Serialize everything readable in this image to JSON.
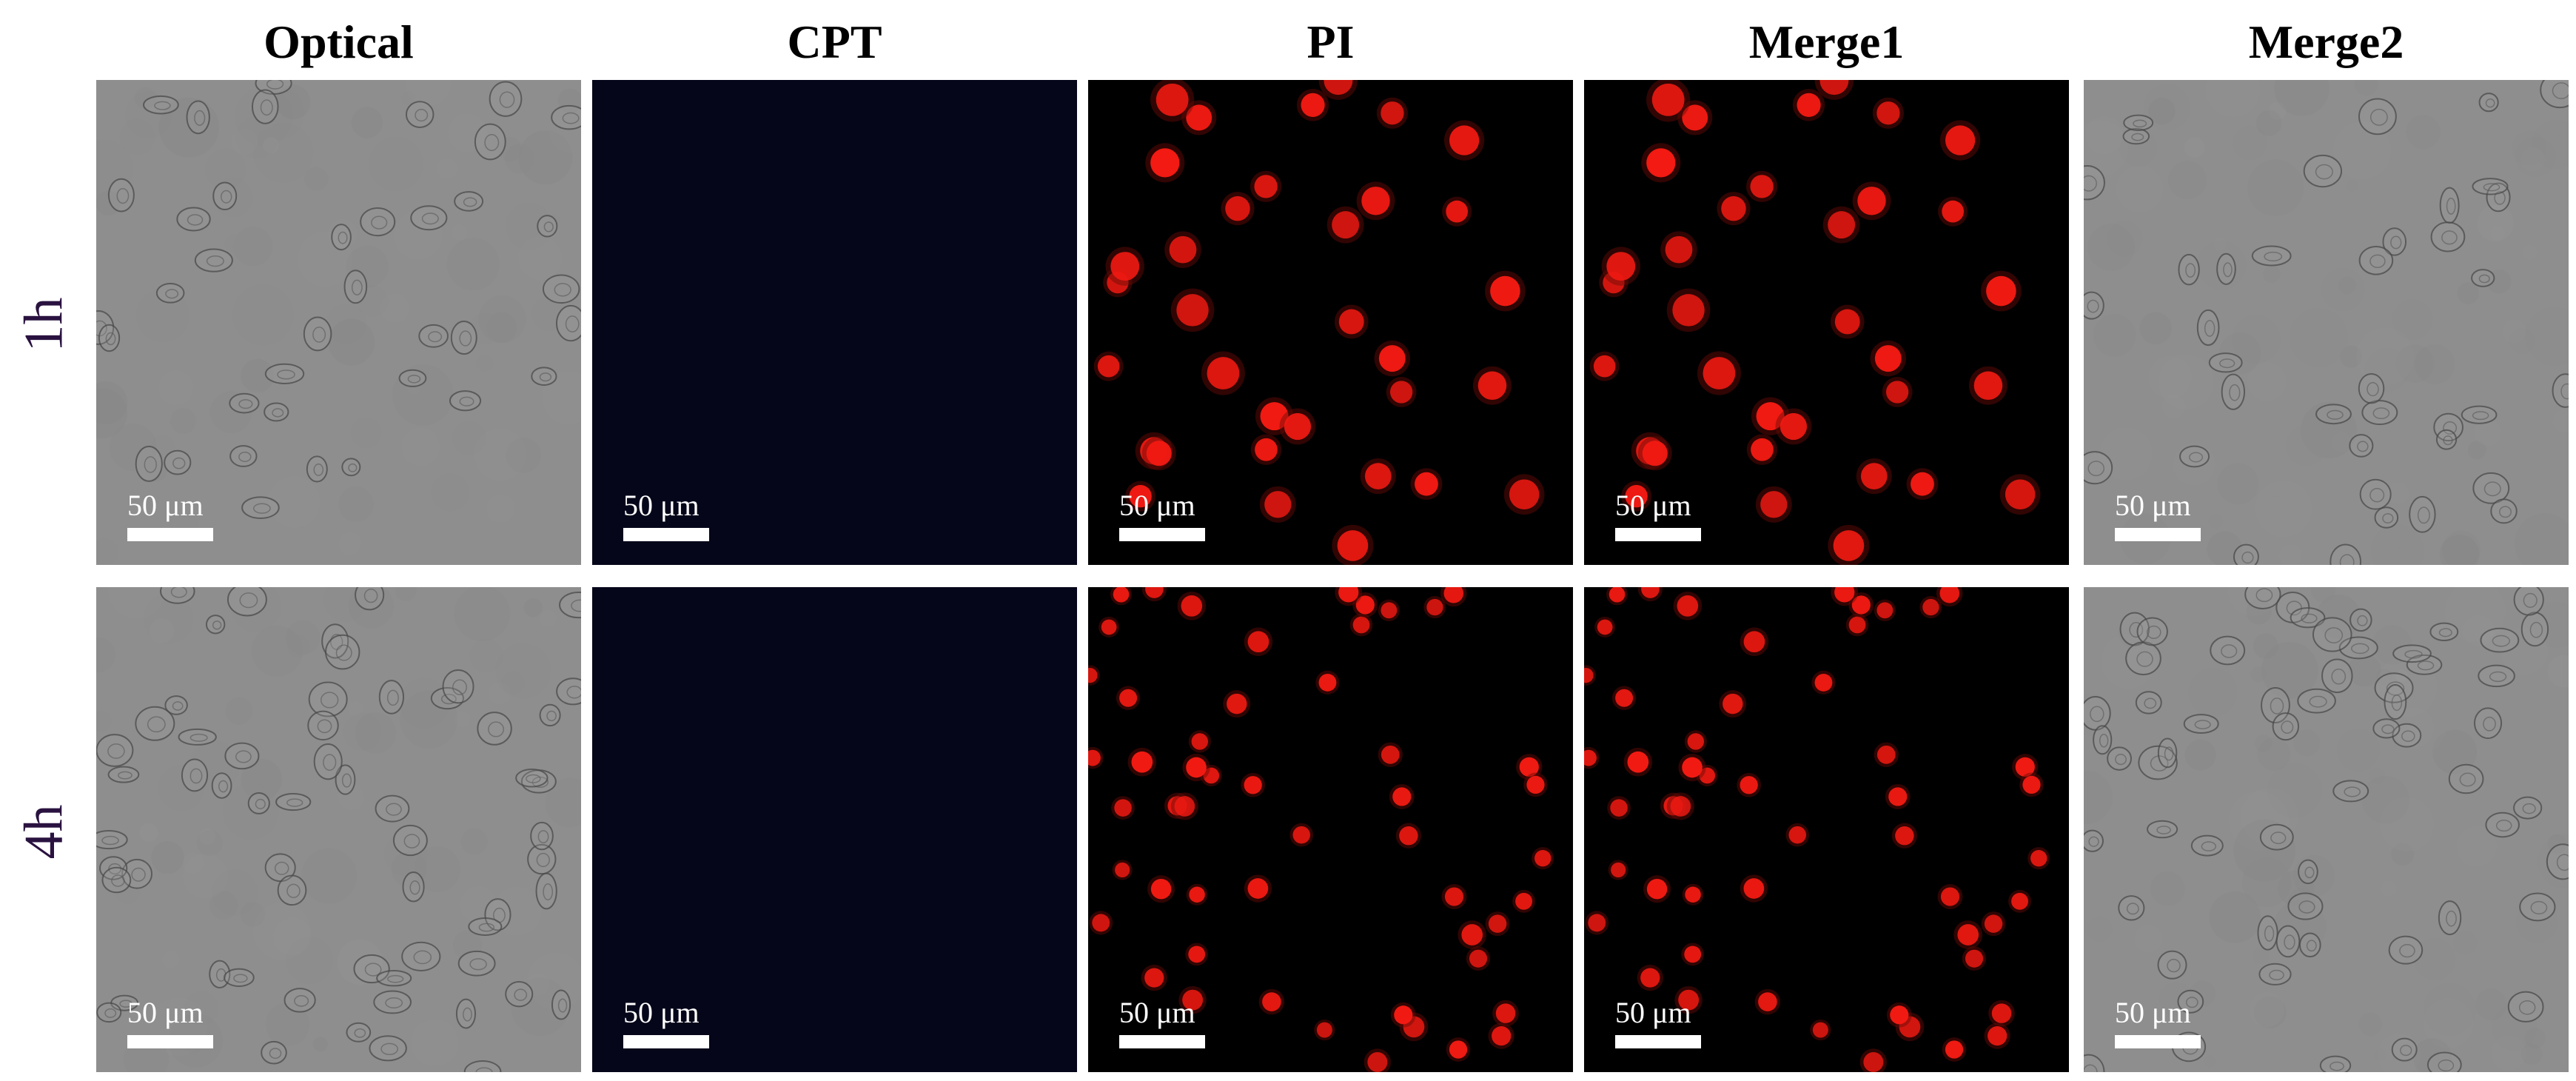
{
  "figure": {
    "columns": [
      {
        "key": "optical",
        "label": "Optical",
        "kind": "brightfield"
      },
      {
        "key": "cpt",
        "label": "CPT",
        "kind": "blank"
      },
      {
        "key": "pi",
        "label": "PI",
        "kind": "fluor"
      },
      {
        "key": "merge1",
        "label": "Merge1",
        "kind": "fluor"
      },
      {
        "key": "merge2",
        "label": "Merge2",
        "kind": "brightfield"
      }
    ],
    "rows": [
      {
        "key": "1h",
        "label": "1h"
      },
      {
        "key": "4h",
        "label": "4h"
      }
    ],
    "scale_bar_label": "50 μm",
    "colors": {
      "brightfield_bg": "#8e8e8e",
      "cpt_bg": "#05061a",
      "fluor_bg": "#000000",
      "nucleus": "#f21a12",
      "row_label": "#2a1240"
    }
  }
}
